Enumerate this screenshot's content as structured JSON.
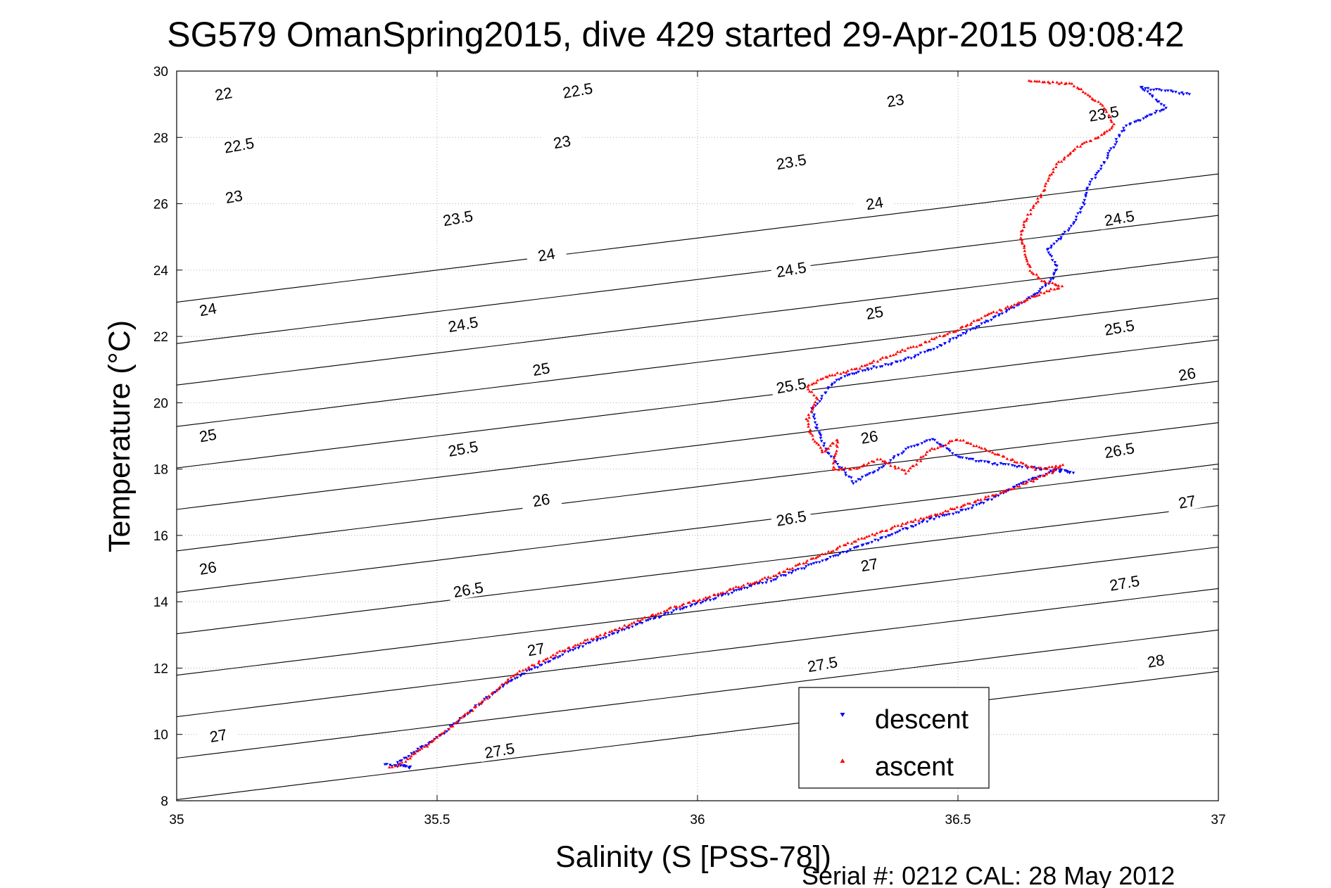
{
  "chart_data": {
    "type": "scatter",
    "title": "SG579 OmanSpring2015, dive 429 started 29-Apr-2015 09:08:42",
    "xlabel": "Salinity (S [PSS-78])",
    "ylabel": "Temperature (°C)",
    "xlim": [
      35,
      37
    ],
    "ylim": [
      8,
      30
    ],
    "xticks": [
      35,
      35.5,
      36,
      36.5,
      37
    ],
    "xtick_labels": [
      "35",
      "35.5",
      "36",
      "36.5",
      "37"
    ],
    "yticks": [
      8,
      10,
      12,
      14,
      16,
      18,
      20,
      22,
      24,
      26,
      28,
      30
    ],
    "ytick_labels": [
      "8",
      "10",
      "12",
      "14",
      "16",
      "18",
      "20",
      "22",
      "24",
      "26",
      "28",
      "30"
    ],
    "grid": true,
    "legend_position": "bottom-right",
    "density_contours": {
      "levels": [
        22,
        22.5,
        23,
        23.5,
        24,
        24.5,
        25,
        25.5,
        26,
        26.5,
        27,
        27.5,
        28
      ],
      "labels": [
        {
          "text": "22",
          "s": 35.09,
          "t": 29.3
        },
        {
          "text": "22.5",
          "s": 35.12,
          "t": 27.75
        },
        {
          "text": "23",
          "s": 35.11,
          "t": 26.2
        },
        {
          "text": "24",
          "s": 35.06,
          "t": 22.8
        },
        {
          "text": "25",
          "s": 35.06,
          "t": 19.0
        },
        {
          "text": "26",
          "s": 35.06,
          "t": 15.0
        },
        {
          "text": "27",
          "s": 35.08,
          "t": 9.95
        },
        {
          "text": "23.5",
          "s": 35.54,
          "t": 25.55
        },
        {
          "text": "24.5",
          "s": 35.55,
          "t": 22.35
        },
        {
          "text": "25.5",
          "s": 35.55,
          "t": 18.6
        },
        {
          "text": "26.5",
          "s": 35.56,
          "t": 14.35
        },
        {
          "text": "27",
          "s": 35.69,
          "t": 12.55
        },
        {
          "text": "27.5",
          "s": 35.62,
          "t": 9.5
        },
        {
          "text": "22.5",
          "s": 35.77,
          "t": 29.4
        },
        {
          "text": "23",
          "s": 35.74,
          "t": 27.85
        },
        {
          "text": "24",
          "s": 35.71,
          "t": 24.45
        },
        {
          "text": "25",
          "s": 35.7,
          "t": 21.0
        },
        {
          "text": "26",
          "s": 35.7,
          "t": 17.05
        },
        {
          "text": "23",
          "s": 36.38,
          "t": 29.1
        },
        {
          "text": "23.5",
          "s": 36.18,
          "t": 27.25
        },
        {
          "text": "24",
          "s": 36.34,
          "t": 26.0
        },
        {
          "text": "24.5",
          "s": 36.18,
          "t": 24.0
        },
        {
          "text": "25",
          "s": 36.34,
          "t": 22.7
        },
        {
          "text": "25.5",
          "s": 36.18,
          "t": 20.5
        },
        {
          "text": "26",
          "s": 36.33,
          "t": 18.95
        },
        {
          "text": "26.5",
          "s": 36.18,
          "t": 16.5
        },
        {
          "text": "27",
          "s": 36.33,
          "t": 15.1
        },
        {
          "text": "27.5",
          "s": 36.24,
          "t": 12.1
        },
        {
          "text": "23.5",
          "s": 36.78,
          "t": 28.7
        },
        {
          "text": "24.5",
          "s": 36.81,
          "t": 25.55
        },
        {
          "text": "25.5",
          "s": 36.81,
          "t": 22.25
        },
        {
          "text": "26",
          "s": 36.94,
          "t": 20.85
        },
        {
          "text": "26.5",
          "s": 36.81,
          "t": 18.55
        },
        {
          "text": "27",
          "s": 36.94,
          "t": 17.0
        },
        {
          "text": "27.5",
          "s": 36.82,
          "t": 14.55
        },
        {
          "text": "28",
          "s": 36.88,
          "t": 12.2
        }
      ]
    },
    "series": [
      {
        "name": "descent",
        "color": "#0000ff",
        "marker": "triangle-down",
        "profile": [
          [
            35.4,
            9.1
          ],
          [
            35.45,
            9.0
          ],
          [
            35.42,
            9.1
          ],
          [
            35.5,
            9.9
          ],
          [
            35.58,
            10.9
          ],
          [
            35.65,
            11.7
          ],
          [
            35.75,
            12.5
          ],
          [
            35.85,
            13.1
          ],
          [
            35.95,
            13.7
          ],
          [
            36.05,
            14.2
          ],
          [
            36.15,
            14.7
          ],
          [
            36.25,
            15.3
          ],
          [
            36.35,
            15.9
          ],
          [
            36.45,
            16.5
          ],
          [
            36.5,
            16.7
          ],
          [
            36.55,
            17.0
          ],
          [
            36.6,
            17.4
          ],
          [
            36.66,
            17.8
          ],
          [
            36.7,
            18.0
          ],
          [
            36.72,
            17.9
          ],
          [
            36.55,
            18.2
          ],
          [
            36.5,
            18.4
          ],
          [
            36.45,
            18.9
          ],
          [
            36.4,
            18.6
          ],
          [
            36.35,
            18.0
          ],
          [
            36.3,
            17.6
          ],
          [
            36.25,
            18.5
          ],
          [
            36.23,
            19.2
          ],
          [
            36.22,
            19.8
          ],
          [
            36.24,
            20.2
          ],
          [
            36.26,
            20.6
          ],
          [
            36.3,
            20.9
          ],
          [
            36.35,
            21.1
          ],
          [
            36.4,
            21.3
          ],
          [
            36.45,
            21.6
          ],
          [
            36.5,
            22.0
          ],
          [
            36.55,
            22.4
          ],
          [
            36.6,
            22.8
          ],
          [
            36.64,
            23.2
          ],
          [
            36.66,
            23.4
          ],
          [
            36.68,
            23.7
          ],
          [
            36.69,
            24.1
          ],
          [
            36.67,
            24.6
          ],
          [
            36.7,
            25.0
          ],
          [
            36.72,
            25.4
          ],
          [
            36.74,
            25.9
          ],
          [
            36.75,
            26.5
          ],
          [
            36.78,
            27.2
          ],
          [
            36.8,
            27.8
          ],
          [
            36.82,
            28.3
          ],
          [
            36.86,
            28.6
          ],
          [
            36.9,
            28.9
          ],
          [
            36.85,
            29.5
          ],
          [
            36.95,
            29.3
          ]
        ]
      },
      {
        "name": "ascent",
        "color": "#ff0000",
        "marker": "triangle-up",
        "profile": [
          [
            35.41,
            9.0
          ],
          [
            35.43,
            9.1
          ],
          [
            35.5,
            9.9
          ],
          [
            35.58,
            10.9
          ],
          [
            35.65,
            11.8
          ],
          [
            35.75,
            12.6
          ],
          [
            35.85,
            13.2
          ],
          [
            35.95,
            13.8
          ],
          [
            36.05,
            14.3
          ],
          [
            36.15,
            14.8
          ],
          [
            36.25,
            15.5
          ],
          [
            36.35,
            16.1
          ],
          [
            36.45,
            16.6
          ],
          [
            36.55,
            17.1
          ],
          [
            36.62,
            17.5
          ],
          [
            36.68,
            17.9
          ],
          [
            36.7,
            18.1
          ],
          [
            36.65,
            18.0
          ],
          [
            36.5,
            18.9
          ],
          [
            36.45,
            18.6
          ],
          [
            36.4,
            17.9
          ],
          [
            36.35,
            18.3
          ],
          [
            36.3,
            18.0
          ],
          [
            36.26,
            18.0
          ],
          [
            36.27,
            18.9
          ],
          [
            36.24,
            18.5
          ],
          [
            36.22,
            19.0
          ],
          [
            36.21,
            19.5
          ],
          [
            36.23,
            20.1
          ],
          [
            36.21,
            20.5
          ],
          [
            36.25,
            20.8
          ],
          [
            36.3,
            21.0
          ],
          [
            36.35,
            21.3
          ],
          [
            36.4,
            21.6
          ],
          [
            36.45,
            21.9
          ],
          [
            36.5,
            22.2
          ],
          [
            36.55,
            22.6
          ],
          [
            36.6,
            22.9
          ],
          [
            36.63,
            23.1
          ],
          [
            36.66,
            23.3
          ],
          [
            36.7,
            23.5
          ],
          [
            36.66,
            23.7
          ],
          [
            36.64,
            24.0
          ],
          [
            36.63,
            24.5
          ],
          [
            36.62,
            25.0
          ],
          [
            36.63,
            25.5
          ],
          [
            36.65,
            26.0
          ],
          [
            36.67,
            26.6
          ],
          [
            36.69,
            27.2
          ],
          [
            36.73,
            27.7
          ],
          [
            36.78,
            28.1
          ],
          [
            36.8,
            28.4
          ],
          [
            36.78,
            28.9
          ],
          [
            36.75,
            29.3
          ],
          [
            36.72,
            29.6
          ],
          [
            36.63,
            29.7
          ]
        ]
      }
    ],
    "legend": [
      "descent",
      "ascent"
    ]
  },
  "footer": {
    "serial": "Serial #: 0212  CAL: 28 May 2012"
  }
}
